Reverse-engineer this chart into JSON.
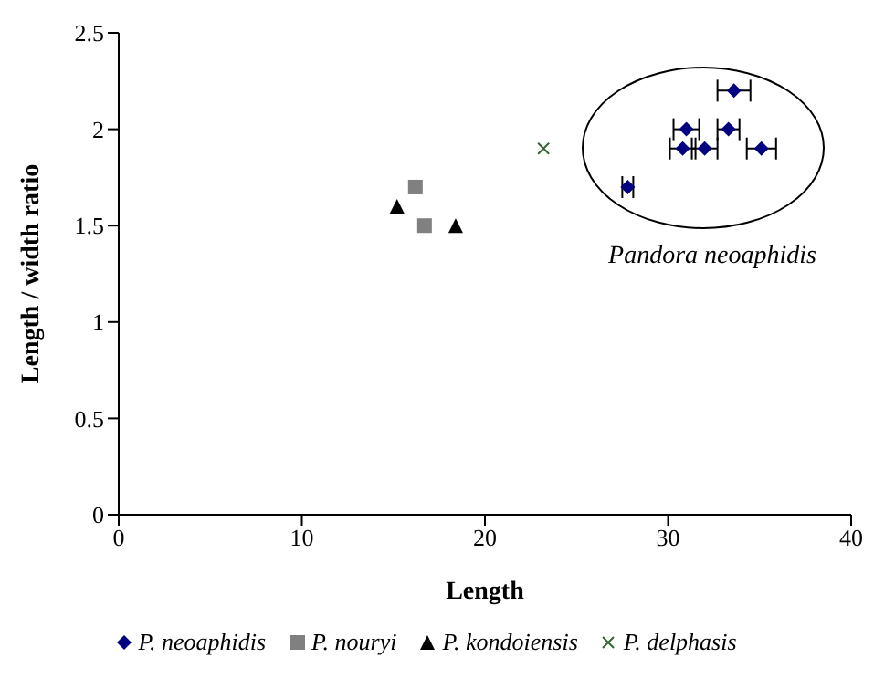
{
  "chart_data": {
    "type": "scatter",
    "xlabel": "Length",
    "ylabel": "Length / width ratio",
    "xlim": [
      0,
      40
    ],
    "xticks": [
      0,
      10,
      20,
      30,
      40
    ],
    "ylim": [
      0,
      2.5
    ],
    "yticks": [
      0,
      0.5,
      1,
      1.5,
      2,
      2.5
    ],
    "legend": "bottom",
    "annotations": [
      "Pandora neoaphidis"
    ],
    "series": [
      {
        "name": "P. neoaphidis",
        "color": "#000080",
        "marker": "diamond",
        "x": [
          27.8,
          33.6,
          31.0,
          33.3,
          30.8,
          32.0,
          35.1
        ],
        "values": [
          1.7,
          2.2,
          2.0,
          2.0,
          1.9,
          1.9,
          1.9
        ],
        "xerrors": [
          0.3,
          0.9,
          0.7,
          0.6,
          0.7,
          0.7,
          0.8
        ]
      },
      {
        "name": "P. nouryi",
        "color": "#808080",
        "marker": "square",
        "x": [
          16.2,
          16.7
        ],
        "values": [
          1.7,
          1.5
        ]
      },
      {
        "name": "P. kondoiensis",
        "color": "#000000",
        "marker": "triangle",
        "x": [
          15.2,
          18.4
        ],
        "values": [
          1.6,
          1.5
        ]
      },
      {
        "name": "P. delphasis",
        "color": "#336633",
        "marker": "cross",
        "x": [
          23.2
        ],
        "values": [
          1.9
        ]
      }
    ]
  }
}
